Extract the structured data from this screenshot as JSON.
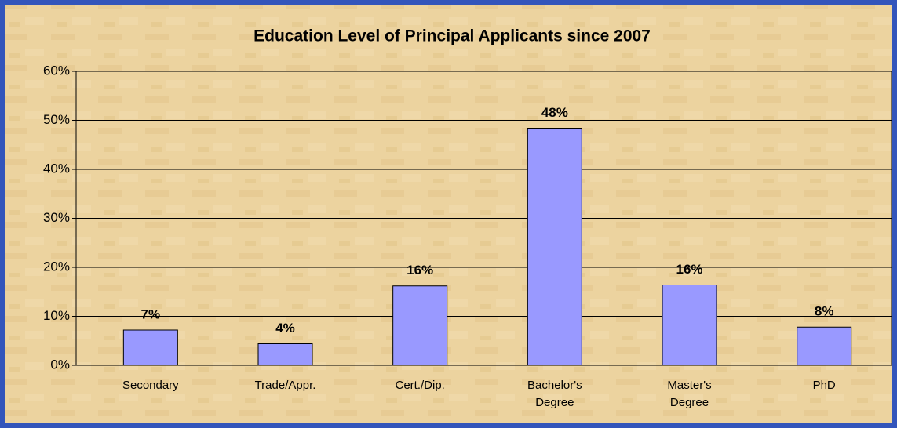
{
  "chart_data": {
    "type": "bar",
    "title": "Education Level of Principal Applicants since 2007",
    "categories": [
      "Secondary",
      "Trade/Appr.",
      "Cert./Dip.",
      "Bachelor's Degree",
      "Master's Degree",
      "PhD"
    ],
    "values": [
      7.2,
      4.4,
      16.2,
      48.4,
      16.4,
      7.8
    ],
    "value_labels": [
      "7%",
      "4%",
      "16%",
      "48%",
      "16%",
      "8%"
    ],
    "color": "#9999ff",
    "ylim": [
      0,
      60
    ],
    "yticks": [
      {
        "value": 0,
        "label": "0%"
      },
      {
        "value": 10,
        "label": "10%"
      },
      {
        "value": 20,
        "label": "20%"
      },
      {
        "value": 30,
        "label": "30%"
      },
      {
        "value": 40,
        "label": "40%"
      },
      {
        "value": 50,
        "label": "50%"
      },
      {
        "value": 60,
        "label": "60%"
      }
    ],
    "grid": true
  }
}
